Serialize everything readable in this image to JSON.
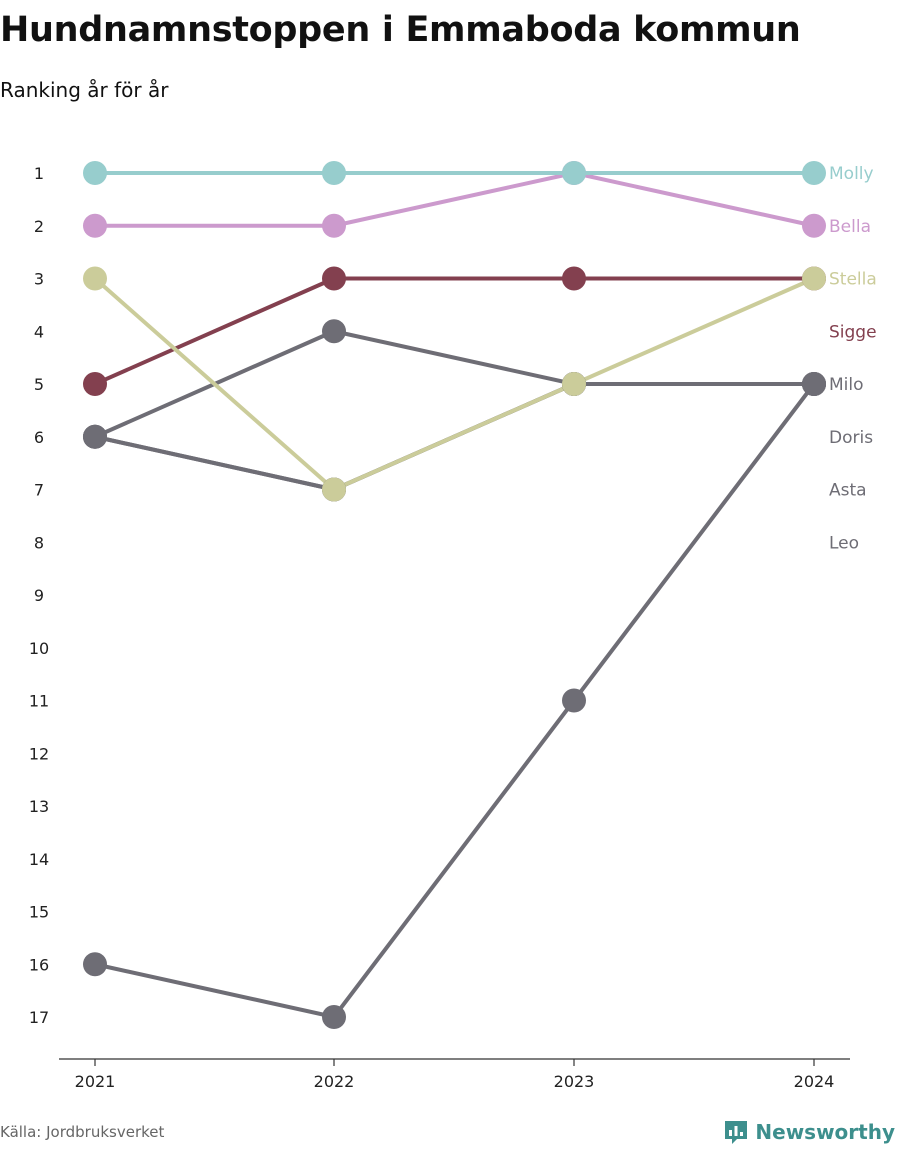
{
  "header": {
    "title": "Hundnamnstoppen i Emmaboda kommun",
    "subtitle": "Ranking år för år"
  },
  "footer": {
    "source": "Källa: Jordbruksverket",
    "brand": "Newsworthy",
    "brand_icon": "bar-chart-icon",
    "brand_color": "#3d8f8d"
  },
  "chart_data": {
    "type": "line",
    "x": [
      "2021",
      "2022",
      "2023",
      "2024"
    ],
    "y_ticks": [
      1,
      2,
      3,
      4,
      5,
      6,
      7,
      8,
      9,
      10,
      11,
      12,
      13,
      14,
      15,
      16,
      17
    ],
    "ylim": [
      1,
      17
    ],
    "y_inverted": true,
    "grid": false,
    "legend": "right-end labels",
    "series": [
      {
        "name": "Leo",
        "color": "#6e6d75",
        "values": [
          16,
          17,
          11,
          5
        ]
      },
      {
        "name": "Asta",
        "color": "#6e6d75",
        "values": [
          6,
          7,
          5,
          5
        ]
      },
      {
        "name": "Doris",
        "color": "#6e6d75",
        "values": [
          6,
          4,
          5,
          5
        ]
      },
      {
        "name": "Milo",
        "color": "#6e6d75",
        "values": [
          6,
          7,
          5,
          5
        ]
      },
      {
        "name": "Sigge",
        "color": "#83404f",
        "values": [
          5,
          3,
          3,
          3
        ]
      },
      {
        "name": "Stella",
        "color": "#cbcc9a",
        "values": [
          3,
          7,
          5,
          3
        ]
      },
      {
        "name": "Bella",
        "color": "#cc9acd",
        "values": [
          2,
          2,
          1,
          2
        ]
      },
      {
        "name": "Molly",
        "color": "#97cdcd",
        "values": [
          1,
          1,
          1,
          1
        ]
      }
    ],
    "end_labels": [
      {
        "name": "Molly",
        "rank": 1,
        "color": "#97cdcd"
      },
      {
        "name": "Bella",
        "rank": 2,
        "color": "#cc9acd"
      },
      {
        "name": "Stella",
        "rank": 3,
        "color": "#cbcc9a"
      },
      {
        "name": "Sigge",
        "rank": 4,
        "color": "#83404f"
      },
      {
        "name": "Milo",
        "rank": 5,
        "color": "#6e6d75"
      },
      {
        "name": "Doris",
        "rank": 6,
        "color": "#6e6d75"
      },
      {
        "name": "Asta",
        "rank": 7,
        "color": "#6e6d75"
      },
      {
        "name": "Leo",
        "rank": 8,
        "color": "#6e6d75"
      }
    ]
  }
}
